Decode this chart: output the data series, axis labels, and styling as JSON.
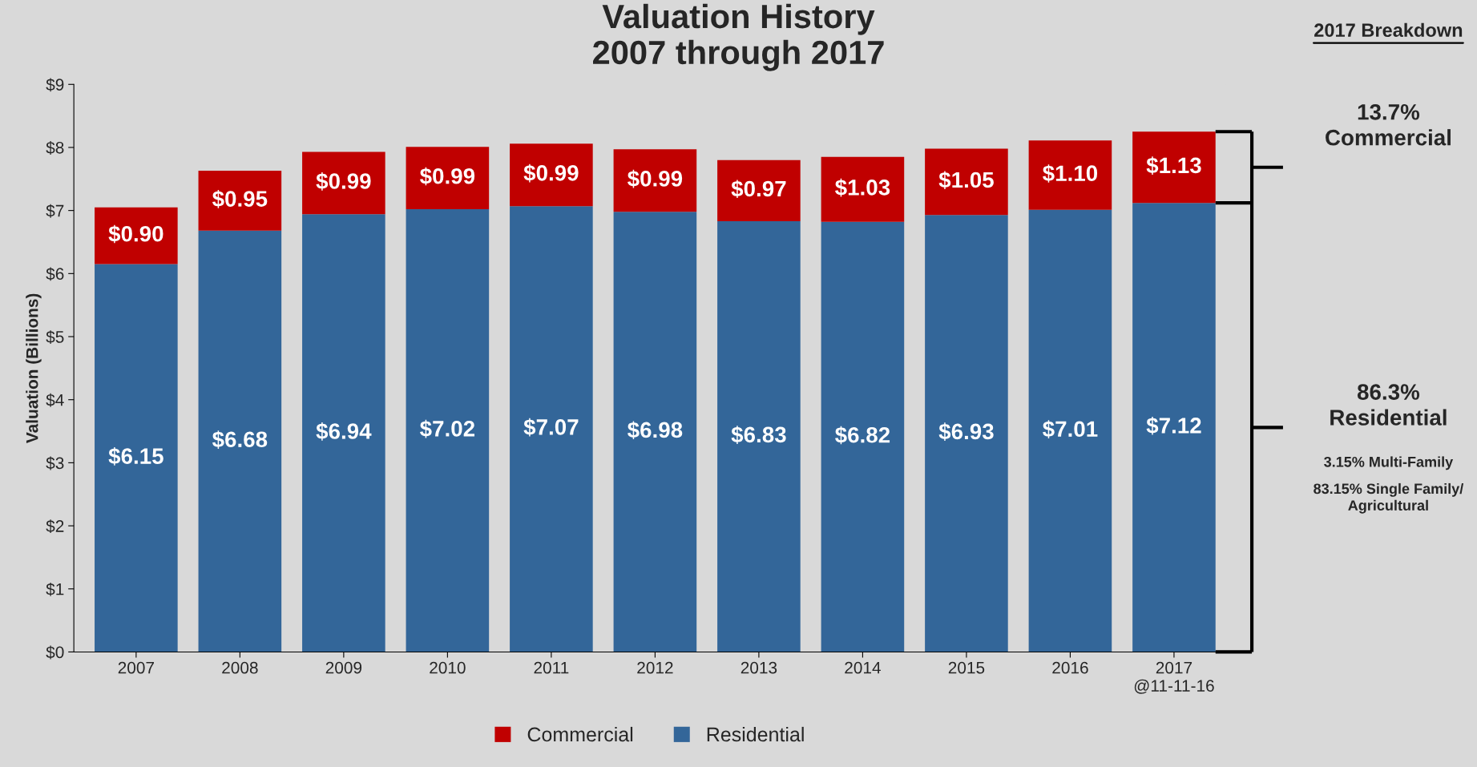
{
  "chart_data": {
    "type": "bar",
    "stacked": true,
    "title": "Valuation History\n2007 through 2017",
    "ylabel": "Valuation (Billions)",
    "categories": [
      "2007",
      "2008",
      "2009",
      "2010",
      "2011",
      "2012",
      "2013",
      "2014",
      "2015",
      "2016",
      "2017\n@11-11-16"
    ],
    "series": [
      {
        "name": "Residential",
        "color": "#336699",
        "values": [
          6.15,
          6.68,
          6.94,
          7.02,
          7.07,
          6.98,
          6.83,
          6.82,
          6.93,
          7.01,
          7.12
        ],
        "value_labels": [
          "$6.15",
          "$6.68",
          "$6.94",
          "$7.02",
          "$7.07",
          "$6.98",
          "$6.83",
          "$6.82",
          "$6.93",
          "$7.01",
          "$7.12"
        ]
      },
      {
        "name": "Commercial",
        "color": "#c00000",
        "values": [
          0.9,
          0.95,
          0.99,
          0.99,
          0.99,
          0.99,
          0.97,
          1.03,
          1.05,
          1.1,
          1.13
        ],
        "value_labels": [
          "$0.90",
          "$0.95",
          "$0.99",
          "$0.99",
          "$0.99",
          "$0.99",
          "$0.97",
          "$1.03",
          "$1.05",
          "$1.10",
          "$1.13"
        ]
      }
    ],
    "ylim": [
      0,
      9
    ],
    "yticks": [
      {
        "value": 0,
        "label": "$0"
      },
      {
        "value": 1,
        "label": "$1"
      },
      {
        "value": 2,
        "label": "$2"
      },
      {
        "value": 3,
        "label": "$3"
      },
      {
        "value": 4,
        "label": "$4"
      },
      {
        "value": 5,
        "label": "$5"
      },
      {
        "value": 6,
        "label": "$6"
      },
      {
        "value": 7,
        "label": "$7"
      },
      {
        "value": 8,
        "label": "$8"
      },
      {
        "value": 9,
        "label": "$9"
      }
    ],
    "grid": false,
    "legend": "bottom",
    "annotations": [
      "2017 Breakdown",
      "13.7%\nCommercial",
      "86.3%\nResidential",
      "3.15% Multi-Family",
      "83.15% Single Family/\nAgricultural"
    ]
  }
}
